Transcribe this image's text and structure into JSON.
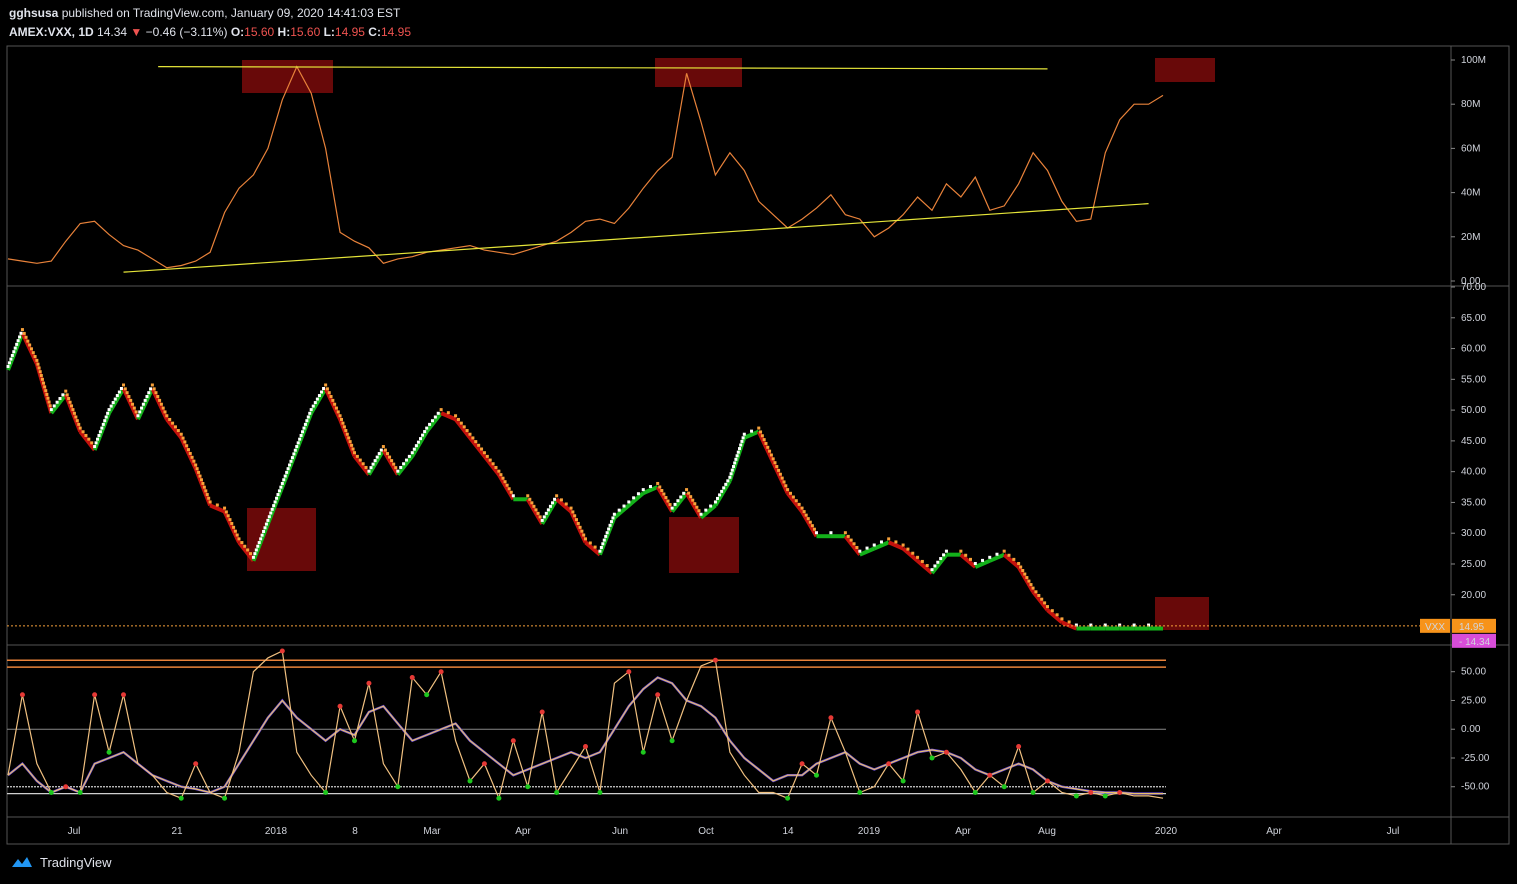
{
  "header": {
    "publisher": "gghsusa",
    "published_text": "published on TradingView.com, January 09, 2020 14:41:03 EST",
    "symbol": "AMEX:VXX, 1D",
    "last": "14.34",
    "change_arrow": "▼",
    "change": "−0.46 (−3.11%)",
    "o_label": "O:",
    "o_value": "15.60",
    "h_label": "H:",
    "h_value": "15.60",
    "l_label": "L:",
    "l_value": "14.95",
    "c_label": "C:",
    "c_value": "14.95"
  },
  "footer": {
    "brand": "TradingView",
    "logo_icon": "tradingview-logo-icon"
  },
  "chart_data": [
    {
      "type": "line",
      "panel": "volume-indicator",
      "series": [],
      "y_ticks": [
        "100M",
        "80M",
        "60M",
        "40M",
        "20M",
        "0.00"
      ],
      "ylim": [
        0,
        100000000
      ],
      "x": [
        0,
        5,
        10,
        15,
        20,
        25,
        30,
        35,
        40,
        45,
        50,
        55,
        60,
        65,
        70,
        75,
        80,
        85,
        90,
        95,
        100,
        105,
        110,
        115,
        120,
        125,
        130,
        135,
        140,
        145,
        150,
        155,
        160,
        165,
        170,
        175,
        180,
        185,
        190,
        195,
        200,
        205,
        210,
        215,
        220,
        225,
        230,
        235,
        240,
        245,
        250,
        255,
        260,
        265,
        270,
        275,
        280,
        285,
        290,
        295,
        300,
        305,
        310,
        315,
        320,
        325,
        330,
        335,
        340,
        345,
        350,
        355,
        360,
        365,
        370,
        375,
        380,
        385,
        390,
        395,
        400
      ],
      "values": [
        10,
        9,
        8,
        9,
        18,
        26,
        27,
        21,
        16,
        14,
        10,
        6,
        7,
        9,
        13,
        31,
        42,
        48,
        60,
        82,
        97,
        85,
        60,
        22,
        18,
        15,
        8,
        10,
        11,
        13,
        14,
        15,
        16,
        14,
        13,
        12,
        14,
        16,
        18,
        22,
        27,
        28,
        26,
        33,
        42,
        50,
        56,
        94,
        72,
        48,
        58,
        50,
        36,
        30,
        24,
        28,
        33,
        39,
        30,
        28,
        20,
        24,
        30,
        38,
        32,
        44,
        38,
        47,
        32,
        34,
        44,
        58,
        50,
        36,
        27,
        28,
        58,
        73,
        80,
        80,
        84
      ],
      "trendlines": [
        {
          "from": [
            52,
            97
          ],
          "to": [
            360,
            96
          ],
          "color": "#e5e539"
        },
        {
          "from": [
            40,
            4
          ],
          "to": [
            395,
            35
          ],
          "color": "#e5e539"
        }
      ],
      "highlight_zones": 3
    },
    {
      "type": "line",
      "panel": "price",
      "symbol": "VXX",
      "y_ticks": [
        "70.00",
        "65.00",
        "60.00",
        "55.00",
        "50.00",
        "45.00",
        "40.00",
        "35.00",
        "30.00",
        "25.00",
        "20.00"
      ],
      "ylim": [
        12,
        70
      ],
      "x": [
        0,
        5,
        10,
        15,
        20,
        25,
        30,
        35,
        40,
        45,
        50,
        55,
        60,
        65,
        70,
        75,
        80,
        85,
        90,
        95,
        100,
        105,
        110,
        115,
        120,
        125,
        130,
        135,
        140,
        145,
        150,
        155,
        160,
        165,
        170,
        175,
        180,
        185,
        190,
        195,
        200,
        205,
        210,
        215,
        220,
        225,
        230,
        235,
        240,
        245,
        250,
        255,
        260,
        265,
        270,
        275,
        280,
        285,
        290,
        295,
        300,
        305,
        310,
        315,
        320,
        325,
        330,
        335,
        340,
        345,
        350,
        355,
        360,
        365,
        370,
        375,
        380,
        385,
        390,
        395,
        400
      ],
      "values": [
        57,
        63,
        58,
        50,
        53,
        47,
        44,
        50,
        54,
        49,
        54,
        49,
        46,
        41,
        35,
        34,
        29,
        26,
        32,
        38,
        44,
        50,
        54,
        49,
        43,
        40,
        44,
        40,
        43,
        47,
        50,
        49,
        46,
        43,
        40,
        36,
        36,
        32,
        36,
        34,
        29,
        27,
        33,
        35,
        37,
        38,
        34,
        37,
        33,
        35,
        39,
        46,
        47,
        42,
        37,
        34,
        30,
        30,
        30,
        27,
        28,
        29,
        28,
        26,
        24,
        27,
        27,
        25,
        26,
        27,
        25,
        21,
        18,
        16,
        15,
        15,
        15,
        15,
        15,
        15,
        15
      ],
      "current_label": "VXX",
      "current_value": "14.95",
      "last_value": "14.34",
      "highlight_zones": 3,
      "colors": {
        "up": "#ffffff",
        "down": "#f7a13a",
        "trend_up": "#13b11a",
        "trend_down": "#c4110c"
      }
    },
    {
      "type": "line",
      "panel": "oscillator",
      "y_ticks": [
        "50.00",
        "25.00",
        "0.00",
        "-25.00",
        "-50.00"
      ],
      "ylim": [
        -65,
        68
      ],
      "levels": [
        60,
        54,
        -50,
        -56
      ],
      "x": [
        0,
        5,
        10,
        15,
        20,
        25,
        30,
        35,
        40,
        45,
        50,
        55,
        60,
        65,
        70,
        75,
        80,
        85,
        90,
        95,
        100,
        105,
        110,
        115,
        120,
        125,
        130,
        135,
        140,
        145,
        150,
        155,
        160,
        165,
        170,
        175,
        180,
        185,
        190,
        195,
        200,
        205,
        210,
        215,
        220,
        225,
        230,
        235,
        240,
        245,
        250,
        255,
        260,
        265,
        270,
        275,
        280,
        285,
        290,
        295,
        300,
        305,
        310,
        315,
        320,
        325,
        330,
        335,
        340,
        345,
        350,
        355,
        360,
        365,
        370,
        375,
        380,
        385,
        390,
        395,
        400
      ],
      "fast": [
        -40,
        30,
        -30,
        -55,
        -50,
        -55,
        30,
        -20,
        30,
        -30,
        -40,
        -55,
        -60,
        -30,
        -55,
        -60,
        -20,
        50,
        62,
        68,
        -20,
        -40,
        -55,
        20,
        -10,
        40,
        -30,
        -50,
        45,
        30,
        50,
        -10,
        -45,
        -30,
        -60,
        -10,
        -50,
        15,
        -55,
        -35,
        -15,
        -55,
        40,
        50,
        -20,
        30,
        -10,
        25,
        55,
        60,
        -20,
        -40,
        -55,
        -55,
        -60,
        -30,
        -40,
        10,
        -20,
        -55,
        -50,
        -30,
        -45,
        15,
        -25,
        -20,
        -35,
        -55,
        -40,
        -50,
        -15,
        -55,
        -45,
        -55,
        -58,
        -55,
        -58,
        -55,
        -58,
        -58,
        -60
      ],
      "slow": [
        -40,
        -30,
        -45,
        -55,
        -50,
        -55,
        -30,
        -25,
        -20,
        -30,
        -40,
        -45,
        -50,
        -52,
        -55,
        -50,
        -30,
        -10,
        10,
        25,
        10,
        0,
        -10,
        0,
        -5,
        15,
        20,
        5,
        -10,
        -5,
        0,
        5,
        -10,
        -20,
        -30,
        -40,
        -35,
        -30,
        -25,
        -20,
        -25,
        -20,
        0,
        20,
        35,
        45,
        40,
        25,
        20,
        10,
        -10,
        -25,
        -35,
        -45,
        -40,
        -40,
        -30,
        -25,
        -20,
        -30,
        -35,
        -30,
        -25,
        -20,
        -18,
        -20,
        -25,
        -35,
        -40,
        -35,
        -30,
        -35,
        -45,
        -50,
        -52,
        -54,
        -55,
        -55,
        -56,
        -56,
        -56
      ]
    }
  ],
  "x_axis": {
    "labels": [
      "Jul",
      "21",
      "2018",
      "8",
      "Mar",
      "Apr",
      "Jun",
      "Oct",
      "14",
      "2019",
      "Apr",
      "Aug",
      "2020",
      "Apr",
      "Jul"
    ]
  }
}
